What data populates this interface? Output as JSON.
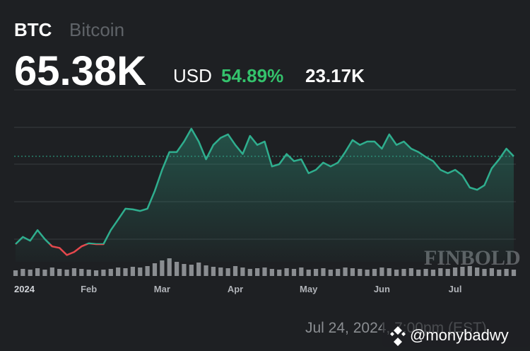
{
  "chart_data": {
    "type": "line",
    "symbol": "BTC",
    "name": "Bitcoin",
    "price": "65.38K",
    "currency": "USD",
    "change": "54.89%",
    "change_abs": "23.17K",
    "date_label": "Jul 24, 2024, 7:00pm (EST)",
    "watermark": "FINBOLD",
    "handle": "@monybadwy",
    "categories": [
      "2024",
      null,
      null,
      null,
      null,
      null,
      null,
      null,
      null,
      null,
      "Feb",
      null,
      null,
      null,
      null,
      null,
      null,
      null,
      null,
      null,
      "Mar",
      null,
      null,
      null,
      null,
      null,
      null,
      null,
      null,
      null,
      "Apr",
      null,
      null,
      null,
      null,
      null,
      null,
      null,
      null,
      null,
      "May",
      null,
      null,
      null,
      null,
      null,
      null,
      null,
      null,
      null,
      "Jun",
      null,
      null,
      null,
      null,
      null,
      null,
      null,
      null,
      null,
      "Jul",
      null,
      null,
      null,
      null,
      null,
      null,
      null,
      null
    ],
    "series": [
      {
        "name": "BTC",
        "color": "#2fae8e",
        "down_color": "#e5484d",
        "values": [
          42.1,
          44.0,
          43.0,
          45.8,
          43.4,
          41.5,
          41.1,
          39.2,
          40.0,
          41.5,
          42.3,
          42.1,
          42.1,
          45.8,
          48.6,
          51.5,
          51.3,
          50.9,
          51.5,
          56.2,
          61.8,
          66.5,
          66.5,
          69.3,
          72.7,
          69.3,
          64.6,
          68.4,
          70.3,
          71.2,
          68.4,
          66.0,
          70.8,
          68.4,
          69.3,
          62.7,
          63.3,
          66.0,
          64.1,
          64.6,
          60.9,
          61.8,
          63.7,
          62.7,
          63.7,
          66.5,
          69.7,
          68.4,
          69.3,
          69.3,
          67.4,
          71.2,
          68.4,
          69.3,
          67.4,
          66.5,
          65.2,
          64.1,
          61.8,
          60.9,
          61.8,
          60.3,
          57.1,
          56.5,
          57.7,
          62.2,
          64.6,
          67.4,
          65.38
        ]
      }
    ],
    "volume": {
      "color": "#8a8d91",
      "values": [
        8,
        10,
        9,
        11,
        9,
        12,
        10,
        9,
        11,
        10,
        9,
        8,
        9,
        10,
        12,
        11,
        13,
        12,
        14,
        18,
        22,
        25,
        20,
        17,
        16,
        19,
        15,
        13,
        12,
        11,
        14,
        12,
        10,
        11,
        12,
        10,
        9,
        11,
        10,
        12,
        9,
        10,
        11,
        9,
        10,
        12,
        11,
        10,
        9,
        10,
        12,
        11,
        9,
        10,
        11,
        9,
        10,
        9,
        11,
        10,
        12,
        13,
        14,
        12,
        10,
        11,
        9,
        10,
        9
      ],
      "ylim": [
        0,
        30
      ]
    },
    "ylim": [
      37.4,
      83
    ]
  }
}
